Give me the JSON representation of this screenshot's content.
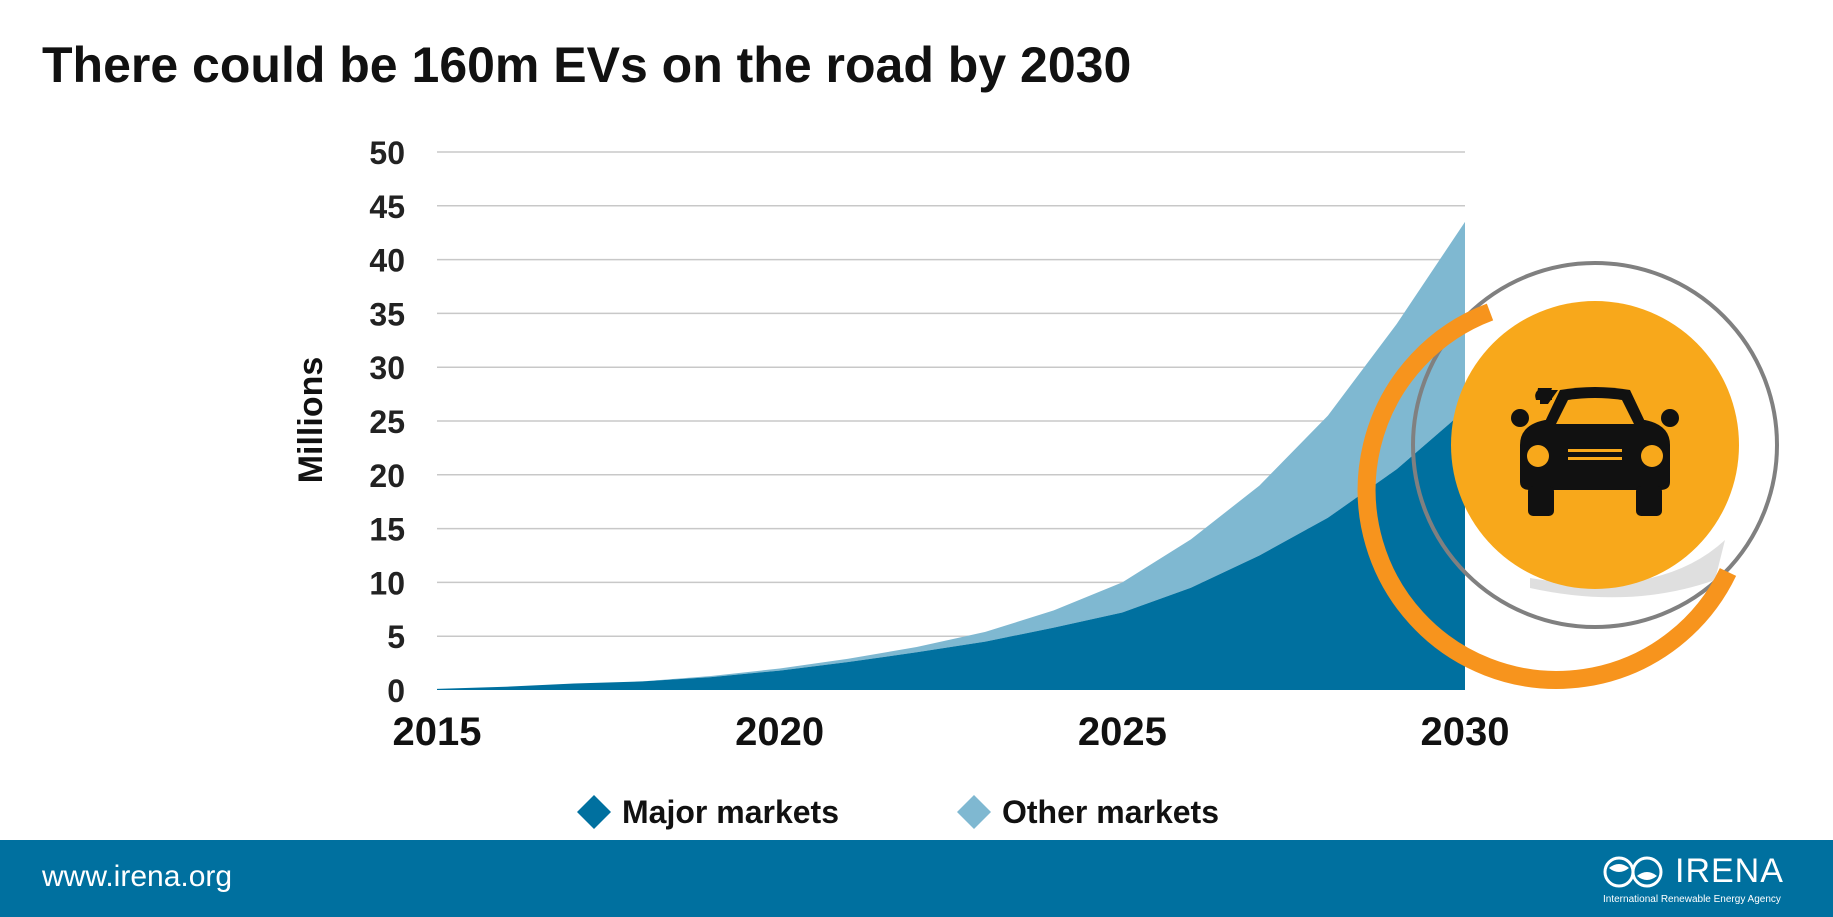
{
  "page": {
    "title": "There could be 160m EVs on the road by 2030"
  },
  "chart_data": {
    "type": "area",
    "stacked": true,
    "title": "There could be 160m EVs on the road by 2030",
    "xlabel": "",
    "ylabel": "Millions",
    "x": [
      2015,
      2016,
      2017,
      2018,
      2019,
      2020,
      2021,
      2022,
      2023,
      2024,
      2025,
      2026,
      2027,
      2028,
      2029,
      2030
    ],
    "xticks": [
      "2015",
      "2020",
      "2025",
      "2030"
    ],
    "yticks": [
      "0",
      "5",
      "10",
      "15",
      "20",
      "25",
      "30",
      "35",
      "40",
      "45",
      "50"
    ],
    "ylim": [
      0,
      50
    ],
    "grid": true,
    "legend_position": "bottom",
    "series": [
      {
        "name": "Major markets",
        "color": "#00709f",
        "values": [
          0.1,
          0.3,
          0.6,
          0.8,
          1.2,
          1.8,
          2.6,
          3.5,
          4.5,
          5.8,
          7.2,
          9.5,
          12.5,
          16,
          20.5,
          26
        ]
      },
      {
        "name": "Other markets",
        "color": "#7fb8d1",
        "values": [
          0.0,
          0.0,
          0.0,
          0.0,
          0.1,
          0.2,
          0.3,
          0.5,
          0.9,
          1.6,
          2.8,
          4.5,
          6.5,
          9.5,
          13.5,
          17.5
        ]
      }
    ]
  },
  "decor": {
    "icon": "car-icon",
    "ring_color": "#f7941d",
    "circle_color": "#f8a81b",
    "outline_color": "#808080"
  },
  "footer": {
    "url": "www.irena.org",
    "brand": "IRENA",
    "brand_subtitle": "International Renewable Energy Agency",
    "background": "#00709f"
  }
}
